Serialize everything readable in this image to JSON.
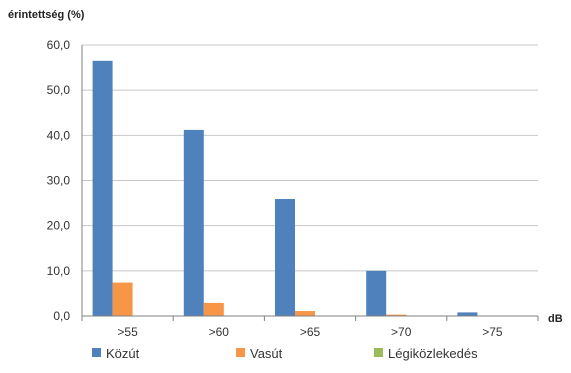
{
  "chart_data": {
    "type": "bar",
    "ylabel": "érintettség (%)",
    "xlabel": "dB",
    "categories": [
      ">55",
      ">60",
      ">65",
      ">70",
      ">75"
    ],
    "y_ticks": [
      "0,0",
      "10,0",
      "20,0",
      "30,0",
      "40,0",
      "50,0",
      "60,0"
    ],
    "ylim": [
      0,
      60
    ],
    "grid": true,
    "legend_position": "bottom",
    "series": [
      {
        "name": "Közút",
        "color": "#4F81BD",
        "values": [
          56.5,
          41.2,
          25.9,
          10.0,
          0.8
        ]
      },
      {
        "name": "Vasút",
        "color": "#F79646",
        "values": [
          7.4,
          2.9,
          1.1,
          0.3,
          0.0
        ]
      },
      {
        "name": "Légiközlekedés",
        "color": "#9BBB59",
        "values": [
          0.0,
          0.0,
          0.0,
          0.0,
          0.0
        ]
      }
    ]
  }
}
